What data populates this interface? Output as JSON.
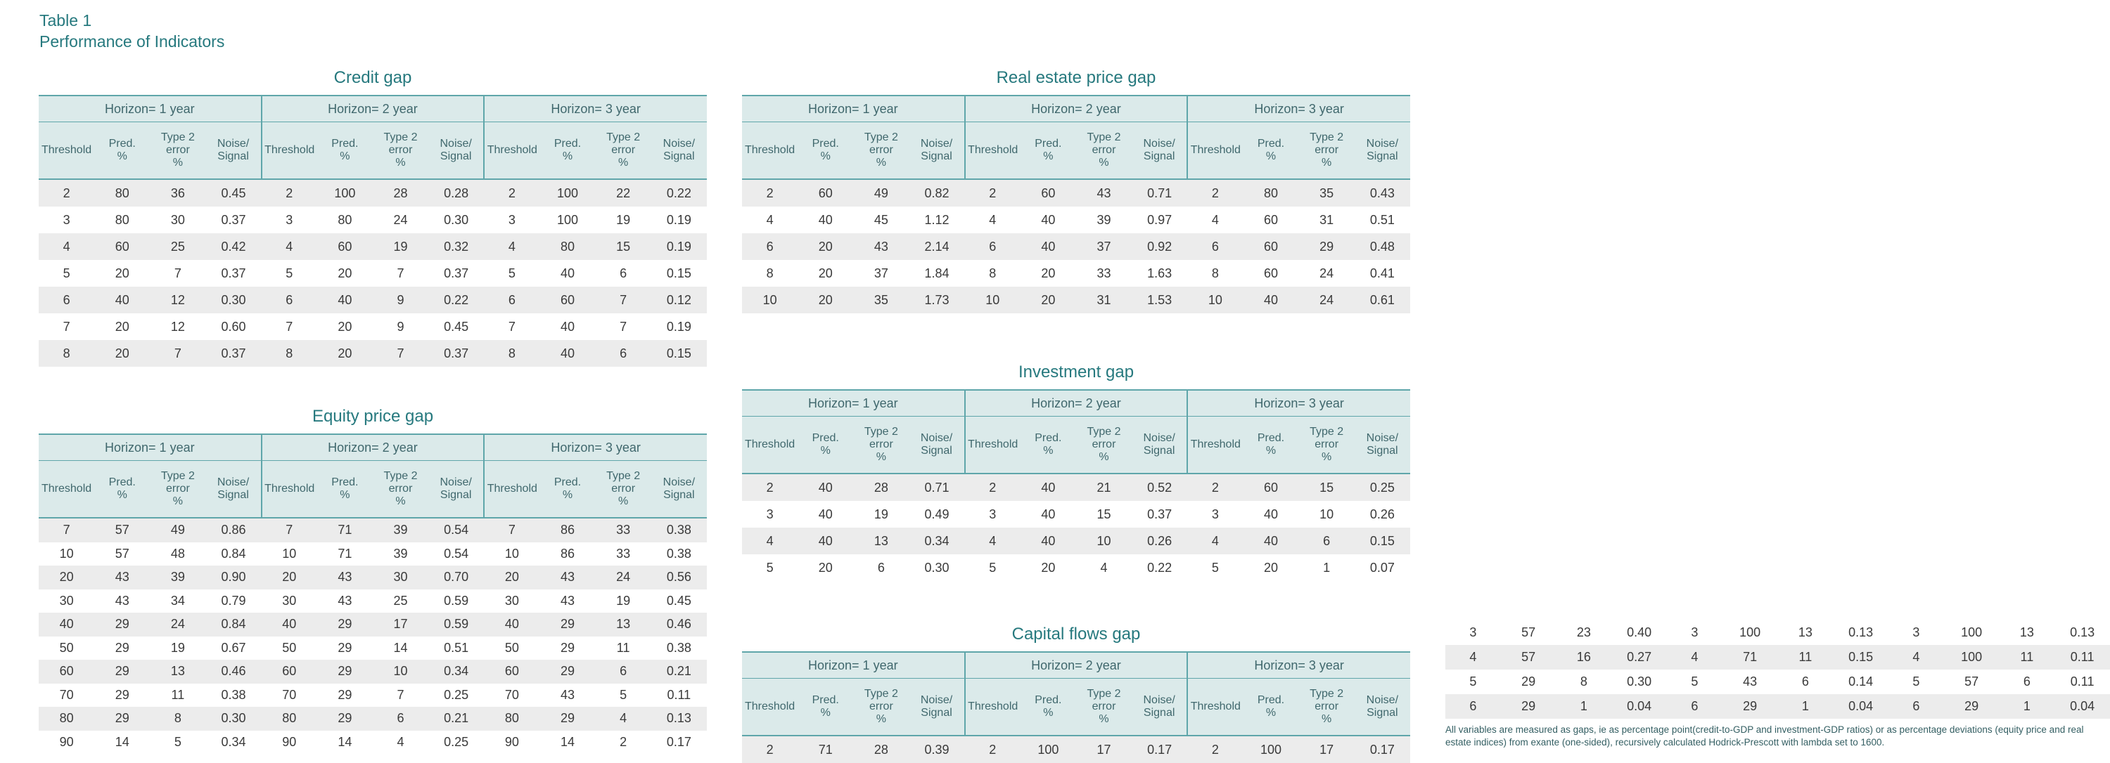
{
  "title": {
    "label": "Table 1",
    "subtitle": "Performance of Indicators"
  },
  "colors": {
    "teal": "#26797e",
    "header-bg": "#dbeaea",
    "line": "#5fa6aa",
    "row-alt": "#ececec",
    "text": "#3a3a3a",
    "header-text": "#40686d",
    "footnote-text": "#345f63"
  },
  "shared": {
    "horizons": [
      "Horizon= 1 year",
      "Horizon= 2 year",
      "Horizon= 3 year"
    ],
    "columns": [
      "Threshold",
      "Pred.\n%",
      "Type 2\nerror\n%",
      "Noise/\nSignal"
    ]
  },
  "tables": [
    {
      "id": "credit-gap",
      "title": "Credit gap",
      "rows": [
        [
          "2",
          "80",
          "36",
          "0.45",
          "2",
          "100",
          "28",
          "0.28",
          "2",
          "100",
          "22",
          "0.22"
        ],
        [
          "3",
          "80",
          "30",
          "0.37",
          "3",
          "80",
          "24",
          "0.30",
          "3",
          "100",
          "19",
          "0.19"
        ],
        [
          "4",
          "60",
          "25",
          "0.42",
          "4",
          "60",
          "19",
          "0.32",
          "4",
          "80",
          "15",
          "0.19"
        ],
        [
          "5",
          "20",
          "7",
          "0.37",
          "5",
          "20",
          "7",
          "0.37",
          "5",
          "40",
          "6",
          "0.15"
        ],
        [
          "6",
          "40",
          "12",
          "0.30",
          "6",
          "40",
          "9",
          "0.22",
          "6",
          "60",
          "7",
          "0.12"
        ],
        [
          "7",
          "20",
          "12",
          "0.60",
          "7",
          "20",
          "9",
          "0.45",
          "7",
          "40",
          "7",
          "0.19"
        ],
        [
          "8",
          "20",
          "7",
          "0.37",
          "8",
          "20",
          "7",
          "0.37",
          "8",
          "40",
          "6",
          "0.15"
        ]
      ]
    },
    {
      "id": "real-estate-price-gap",
      "title": "Real estate price gap",
      "rows": [
        [
          "2",
          "60",
          "49",
          "0.82",
          "2",
          "60",
          "43",
          "0.71",
          "2",
          "80",
          "35",
          "0.43"
        ],
        [
          "4",
          "40",
          "45",
          "1.12",
          "4",
          "40",
          "39",
          "0.97",
          "4",
          "60",
          "31",
          "0.51"
        ],
        [
          "6",
          "20",
          "43",
          "2.14",
          "6",
          "40",
          "37",
          "0.92",
          "6",
          "60",
          "29",
          "0.48"
        ],
        [
          "8",
          "20",
          "37",
          "1.84",
          "8",
          "20",
          "33",
          "1.63",
          "8",
          "60",
          "24",
          "0.41"
        ],
        [
          "10",
          "20",
          "35",
          "1.73",
          "10",
          "20",
          "31",
          "1.53",
          "10",
          "40",
          "24",
          "0.61"
        ]
      ]
    },
    {
      "id": "equity-price-gap",
      "title": "Equity price gap",
      "rows": [
        [
          "7",
          "57",
          "49",
          "0.86",
          "7",
          "71",
          "39",
          "0.54",
          "7",
          "86",
          "33",
          "0.38"
        ],
        [
          "10",
          "57",
          "48",
          "0.84",
          "10",
          "71",
          "39",
          "0.54",
          "10",
          "86",
          "33",
          "0.38"
        ],
        [
          "20",
          "43",
          "39",
          "0.90",
          "20",
          "43",
          "30",
          "0.70",
          "20",
          "43",
          "24",
          "0.56"
        ],
        [
          "30",
          "43",
          "34",
          "0.79",
          "30",
          "43",
          "25",
          "0.59",
          "30",
          "43",
          "19",
          "0.45"
        ],
        [
          "40",
          "29",
          "24",
          "0.84",
          "40",
          "29",
          "17",
          "0.59",
          "40",
          "29",
          "13",
          "0.46"
        ],
        [
          "50",
          "29",
          "19",
          "0.67",
          "50",
          "29",
          "14",
          "0.51",
          "50",
          "29",
          "11",
          "0.38"
        ],
        [
          "60",
          "29",
          "13",
          "0.46",
          "60",
          "29",
          "10",
          "0.34",
          "60",
          "29",
          "6",
          "0.21"
        ],
        [
          "70",
          "29",
          "11",
          "0.38",
          "70",
          "29",
          "7",
          "0.25",
          "70",
          "43",
          "5",
          "0.11"
        ],
        [
          "80",
          "29",
          "8",
          "0.30",
          "80",
          "29",
          "6",
          "0.21",
          "80",
          "29",
          "4",
          "0.13"
        ],
        [
          "90",
          "14",
          "5",
          "0.34",
          "90",
          "14",
          "4",
          "0.25",
          "90",
          "14",
          "2",
          "0.17"
        ]
      ]
    },
    {
      "id": "investment-gap",
      "title": "Investment gap",
      "rows": [
        [
          "2",
          "40",
          "28",
          "0.71",
          "2",
          "40",
          "21",
          "0.52",
          "2",
          "60",
          "15",
          "0.25"
        ],
        [
          "3",
          "40",
          "19",
          "0.49",
          "3",
          "40",
          "15",
          "0.37",
          "3",
          "40",
          "10",
          "0.26"
        ],
        [
          "4",
          "40",
          "13",
          "0.34",
          "4",
          "40",
          "10",
          "0.26",
          "4",
          "40",
          "6",
          "0.15"
        ],
        [
          "5",
          "20",
          "6",
          "0.30",
          "5",
          "20",
          "4",
          "0.22",
          "5",
          "20",
          "1",
          "0.07"
        ]
      ]
    },
    {
      "id": "capital-flows-gap",
      "title": "Capital flows gap",
      "rows": [
        [
          "2",
          "71",
          "28",
          "0.39",
          "2",
          "100",
          "17",
          "0.17",
          "2",
          "100",
          "17",
          "0.17"
        ]
      ]
    }
  ],
  "overflow_rows": [
    [
      "3",
      "57",
      "23",
      "0.40",
      "3",
      "100",
      "13",
      "0.13",
      "3",
      "100",
      "13",
      "0.13"
    ],
    [
      "4",
      "57",
      "16",
      "0.27",
      "4",
      "71",
      "11",
      "0.15",
      "4",
      "100",
      "11",
      "0.11"
    ],
    [
      "5",
      "29",
      "8",
      "0.30",
      "5",
      "43",
      "6",
      "0.14",
      "5",
      "57",
      "6",
      "0.11"
    ],
    [
      "6",
      "29",
      "1",
      "0.04",
      "6",
      "29",
      "1",
      "0.04",
      "6",
      "29",
      "1",
      "0.04"
    ]
  ],
  "footnote": "All variables are measured as gaps, ie as percentage point(credit-to-GDP and investment-GDP ratios) or as percentage deviations (equity price and real estate indices) from exante (one-sided), recursively calculated Hodrick-Prescott with lambda set to 1600."
}
